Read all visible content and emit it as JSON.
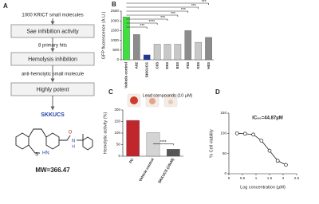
{
  "diagram": {
    "panel": "A",
    "items": [
      "1000 KRICT small molecules",
      "Sae inhibition activity",
      "8 primary hits",
      "Hemolysis inhibition",
      "anti-hemolytic small molecule",
      "Highly potent"
    ],
    "compound": "SKKUCS",
    "atoms": [
      "S",
      "HN",
      "O",
      "N",
      "H"
    ],
    "mw": "MW=366.47"
  },
  "chart_data": [
    {
      "type": "bar",
      "panel": "B",
      "y_label": "GFP fluorescence (A.U.)",
      "x_label": "Lead compounds (10 µM)",
      "categories": [
        "Vehicle control",
        "A02",
        "SKKUCS",
        "C03",
        "D03",
        "E03",
        "F03",
        "G03",
        "H03"
      ],
      "values": [
        2200,
        1300,
        250,
        800,
        800,
        800,
        1500,
        900,
        1150
      ],
      "colors": [
        "#3de03d",
        "#8c8c8c",
        "#23379b",
        "#c8c8c8",
        "#c8c8c8",
        "#c8c8c8",
        "#8c8c8c",
        "#c8c8c8",
        "#8c8c8c"
      ],
      "ylim": [
        0,
        2500
      ],
      "yticks": [
        0,
        500,
        1000,
        1500,
        2000,
        2500
      ],
      "annotations": [
        "***",
        "***",
        "***",
        "***",
        "***",
        "****",
        "***"
      ]
    },
    {
      "type": "bar",
      "panel": "C",
      "y_label": "Hemolytic activity (%)",
      "categories": [
        "PC",
        "Vehicle control",
        "SKKUCS (10uM)"
      ],
      "values": [
        155,
        102,
        30
      ],
      "colors": [
        "#c0272d",
        "#d4d4d4",
        "#555555"
      ],
      "ylim": [
        0,
        200
      ],
      "yticks": [
        0,
        50,
        100,
        150,
        200
      ],
      "annotations": [
        "****"
      ]
    },
    {
      "type": "line",
      "panel": "D",
      "y_label": "% Cell viability",
      "x_label": "Log concentration (µM)",
      "x": [
        0.3,
        0.6,
        0.9,
        1.2,
        1.5,
        1.8,
        2.1
      ],
      "values": [
        100,
        99,
        97,
        82,
        57,
        32,
        22
      ],
      "color": "#222222",
      "xlim": [
        0,
        2.5
      ],
      "xticks": [
        0,
        0.5,
        1,
        1.5,
        2,
        2.5
      ],
      "ylim": [
        0,
        150
      ],
      "yticks": [
        0,
        50,
        100,
        150
      ],
      "annotations": [
        "IC₅₀=44.87µM"
      ]
    }
  ]
}
